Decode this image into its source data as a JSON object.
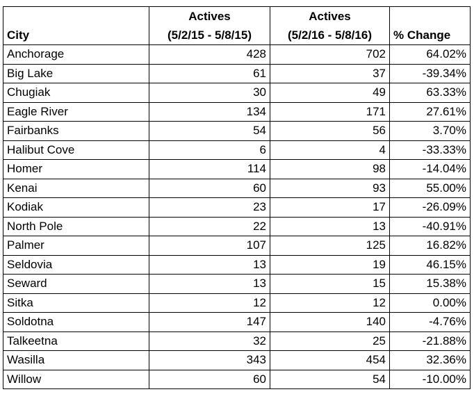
{
  "table": {
    "headers": {
      "city": "City",
      "actives_2015": {
        "line1": "Actives",
        "line2": "(5/2/15 - 5/8/15)"
      },
      "actives_2016": {
        "line1": "Actives",
        "line2": "(5/2/16 - 5/8/16)"
      },
      "pct_change": "% Change"
    },
    "rows": [
      {
        "city": "Anchorage",
        "actives_2015": "428",
        "actives_2016": "702",
        "pct_change": "64.02%"
      },
      {
        "city": "Big Lake",
        "actives_2015": "61",
        "actives_2016": "37",
        "pct_change": "-39.34%"
      },
      {
        "city": "Chugiak",
        "actives_2015": "30",
        "actives_2016": "49",
        "pct_change": "63.33%"
      },
      {
        "city": "Eagle River",
        "actives_2015": "134",
        "actives_2016": "171",
        "pct_change": "27.61%"
      },
      {
        "city": "Fairbanks",
        "actives_2015": "54",
        "actives_2016": "56",
        "pct_change": "3.70%"
      },
      {
        "city": "Halibut Cove",
        "actives_2015": "6",
        "actives_2016": "4",
        "pct_change": "-33.33%"
      },
      {
        "city": "Homer",
        "actives_2015": "114",
        "actives_2016": "98",
        "pct_change": "-14.04%"
      },
      {
        "city": "Kenai",
        "actives_2015": "60",
        "actives_2016": "93",
        "pct_change": "55.00%"
      },
      {
        "city": "Kodiak",
        "actives_2015": "23",
        "actives_2016": "17",
        "pct_change": "-26.09%"
      },
      {
        "city": "North Pole",
        "actives_2015": "22",
        "actives_2016": "13",
        "pct_change": "-40.91%"
      },
      {
        "city": "Palmer",
        "actives_2015": "107",
        "actives_2016": "125",
        "pct_change": "16.82%"
      },
      {
        "city": "Seldovia",
        "actives_2015": "13",
        "actives_2016": "19",
        "pct_change": "46.15%"
      },
      {
        "city": "Seward",
        "actives_2015": "13",
        "actives_2016": "15",
        "pct_change": "15.38%"
      },
      {
        "city": "Sitka",
        "actives_2015": "12",
        "actives_2016": "12",
        "pct_change": "0.00%"
      },
      {
        "city": "Soldotna",
        "actives_2015": "147",
        "actives_2016": "140",
        "pct_change": "-4.76%"
      },
      {
        "city": "Talkeetna",
        "actives_2015": "32",
        "actives_2016": "25",
        "pct_change": "-21.88%"
      },
      {
        "city": "Wasilla",
        "actives_2015": "343",
        "actives_2016": "454",
        "pct_change": "32.36%"
      },
      {
        "city": "Willow",
        "actives_2015": "60",
        "actives_2016": "54",
        "pct_change": "-10.00%"
      }
    ]
  }
}
